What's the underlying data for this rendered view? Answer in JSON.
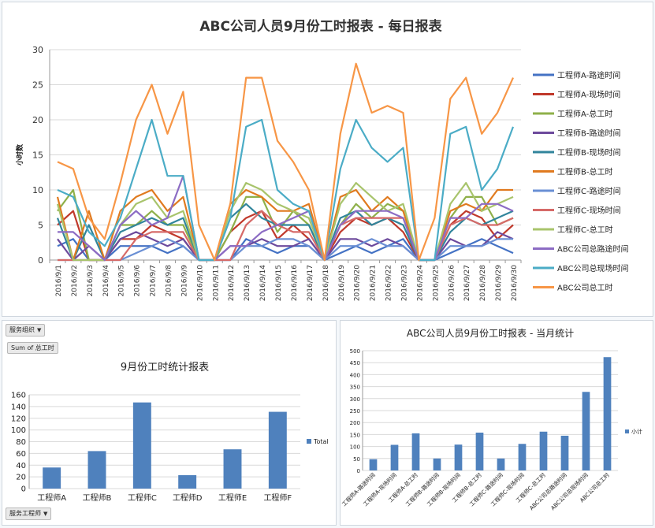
{
  "chart_data": [
    {
      "type": "line",
      "title": "ABC公司人员9月份工时报表 - 每日报表",
      "ylabel": "小时数",
      "ylim": [
        0,
        30
      ],
      "yticks": [
        0,
        5,
        10,
        15,
        20,
        25,
        30
      ],
      "grid": true,
      "legend_position": "right",
      "categories": [
        "2016/9/1",
        "2016/9/2",
        "2016/9/3",
        "2016/9/4",
        "2016/9/5",
        "2016/9/6",
        "2016/9/7",
        "2016/9/8",
        "2016/9/9",
        "2016/9/10",
        "2016/9/11",
        "2016/9/12",
        "2016/9/13",
        "2016/9/14",
        "2016/9/15",
        "2016/9/16",
        "2016/9/17",
        "2016/9/18",
        "2016/9/19",
        "2016/9/20",
        "2016/9/21",
        "2016/9/22",
        "2016/9/23",
        "2016/9/24",
        "2016/9/25",
        "2016/9/26",
        "2016/9/27",
        "2016/9/28",
        "2016/9/29",
        "2016/9/30"
      ],
      "series": [
        {
          "name": "工程师A-路途时间",
          "color": "#4472c4",
          "values": [
            2,
            3,
            0,
            0,
            2,
            2,
            2,
            1,
            2,
            0,
            0,
            0,
            3,
            2,
            1,
            2,
            2,
            0,
            1,
            2,
            1,
            2,
            3,
            0,
            0,
            1,
            2,
            3,
            2,
            1
          ]
        },
        {
          "name": "工程师A-现场时间",
          "color": "#c0392b",
          "values": [
            5,
            7,
            0,
            0,
            3,
            3,
            5,
            4,
            3,
            0,
            0,
            4,
            6,
            7,
            3,
            5,
            3,
            0,
            4,
            6,
            5,
            6,
            4,
            0,
            0,
            5,
            7,
            6,
            3,
            5
          ]
        },
        {
          "name": "工程师A-总工时",
          "color": "#8fb04a",
          "values": [
            7,
            10,
            0,
            0,
            5,
            5,
            7,
            5,
            5,
            0,
            0,
            4,
            9,
            9,
            4,
            7,
            5,
            0,
            5,
            8,
            6,
            8,
            7,
            0,
            0,
            6,
            9,
            9,
            5,
            6
          ]
        },
        {
          "name": "工程师B-路途时间",
          "color": "#6d4a9c",
          "values": [
            3,
            0,
            2,
            0,
            3,
            4,
            3,
            2,
            3,
            0,
            0,
            2,
            2,
            3,
            2,
            2,
            3,
            0,
            3,
            3,
            2,
            3,
            2,
            0,
            0,
            3,
            2,
            2,
            4,
            3
          ]
        },
        {
          "name": "工程师B-现场时间",
          "color": "#31859c",
          "values": [
            6,
            0,
            5,
            0,
            4,
            5,
            6,
            5,
            6,
            0,
            0,
            6,
            8,
            6,
            5,
            5,
            5,
            0,
            6,
            7,
            5,
            6,
            5,
            0,
            0,
            4,
            6,
            5,
            6,
            7
          ]
        },
        {
          "name": "工程师B-总工时",
          "color": "#e07a1f",
          "values": [
            9,
            0,
            7,
            0,
            7,
            9,
            10,
            7,
            9,
            0,
            0,
            8,
            10,
            9,
            7,
            7,
            8,
            0,
            9,
            10,
            7,
            9,
            7,
            0,
            0,
            7,
            8,
            7,
            10,
            10
          ]
        },
        {
          "name": "工程师C-路途时间",
          "color": "#6a8fd4",
          "values": [
            0,
            0,
            0,
            0,
            0,
            1,
            2,
            3,
            2,
            0,
            0,
            0,
            2,
            2,
            3,
            3,
            2,
            0,
            2,
            2,
            3,
            2,
            2,
            0,
            0,
            2,
            2,
            2,
            3,
            3
          ]
        },
        {
          "name": "工程师C-现场时间",
          "color": "#d66a68",
          "values": [
            0,
            0,
            0,
            0,
            0,
            3,
            4,
            4,
            4,
            0,
            0,
            0,
            5,
            7,
            5,
            4,
            4,
            0,
            5,
            6,
            6,
            6,
            6,
            0,
            0,
            5,
            6,
            5,
            5,
            6
          ]
        },
        {
          "name": "工程师C-总工时",
          "color": "#a8c46c",
          "values": [
            8,
            0,
            0,
            0,
            5,
            8,
            9,
            6,
            7,
            0,
            0,
            7,
            11,
            10,
            8,
            7,
            6,
            0,
            8,
            11,
            9,
            7,
            8,
            0,
            0,
            8,
            11,
            7,
            8,
            9
          ]
        },
        {
          "name": "ABC公司总路途时间",
          "color": "#8c6cc4",
          "values": [
            4,
            4,
            2,
            0,
            5,
            7,
            5,
            6,
            12,
            0,
            0,
            2,
            2,
            4,
            5,
            6,
            7,
            0,
            5,
            7,
            7,
            7,
            6,
            0,
            0,
            6,
            6,
            8,
            8,
            7
          ]
        },
        {
          "name": "ABC公司总现场时间",
          "color": "#4bacc6",
          "values": [
            10,
            9,
            4,
            2,
            6,
            13,
            20,
            12,
            12,
            0,
            0,
            6,
            19,
            20,
            10,
            8,
            7,
            0,
            13,
            20,
            16,
            14,
            16,
            0,
            0,
            18,
            19,
            10,
            13,
            19
          ]
        },
        {
          "name": "ABC公司总工时",
          "color": "#f79646",
          "values": [
            14,
            13,
            6,
            3,
            11,
            20,
            25,
            18,
            24,
            5,
            0,
            8,
            26,
            26,
            17,
            14,
            10,
            0,
            18,
            28,
            21,
            22,
            21,
            0,
            6,
            23,
            26,
            18,
            21,
            26
          ]
        }
      ]
    },
    {
      "type": "bar",
      "title": "9月份工时统计报表",
      "categories": [
        "工程师A",
        "工程师B",
        "工程师C",
        "工程师D",
        "工程师E",
        "工程师F"
      ],
      "series": [
        {
          "name": "Total",
          "color": "#4f81bd",
          "values": [
            36,
            64,
            147,
            23,
            67,
            131
          ]
        }
      ],
      "ylim": [
        0,
        160
      ],
      "yticks": [
        0,
        20,
        40,
        60,
        80,
        100,
        120,
        140,
        160
      ],
      "grid": true,
      "legend_position": "right"
    },
    {
      "type": "bar",
      "title": "ABC公司人员9月份工时报表 - 当月统计",
      "categories": [
        "工程师A-路途时间",
        "工程师A-现场时间",
        "工程师A-总工时",
        "工程师B-路途时间",
        "工程师B-现场时间",
        "工程师B-总工时",
        "工程师C-路途时间",
        "工程师C-现场时间",
        "工程师C-总工时",
        "ABC公司总路途时间",
        "ABC公司总现场时间",
        "ABC公司总工时"
      ],
      "series": [
        {
          "name": "小计",
          "color": "#4f81bd",
          "values": [
            47,
            107,
            155,
            50,
            108,
            158,
            50,
            111,
            162,
            145,
            328,
            473
          ]
        }
      ],
      "ylim": [
        0,
        500
      ],
      "yticks": [
        0,
        50,
        100,
        150,
        200,
        250,
        300,
        350,
        400,
        450,
        500
      ],
      "grid": true,
      "legend_position": "right"
    }
  ],
  "pivot": {
    "filter_label": "服务组织",
    "value_label": "Sum of 总工时",
    "axis_label": "服务工程师"
  }
}
